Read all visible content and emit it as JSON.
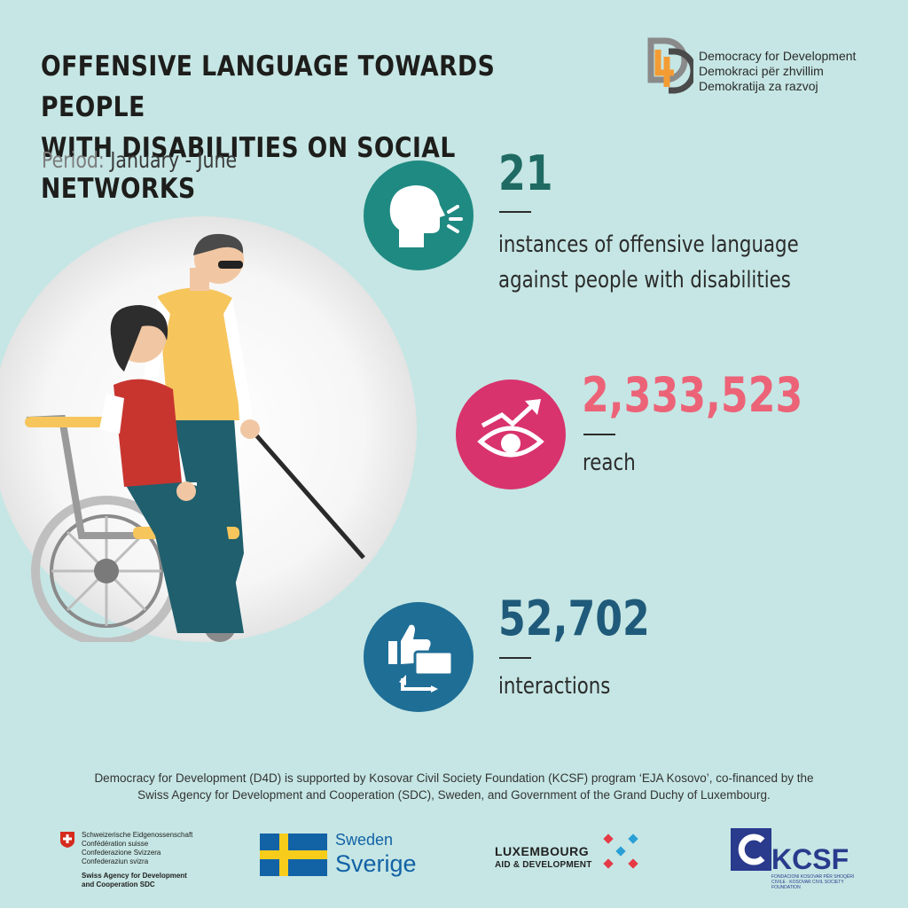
{
  "header": {
    "title_line1": "OFFENSIVE LANGUAGE TOWARDS PEOPLE",
    "title_line2": "WITH DISABILITIES ON SOCIAL NETWORKS",
    "period_label": "Period:",
    "period_value": " January - June"
  },
  "org": {
    "name_en": "Democracy for Development",
    "name_sq": "Demokraci për zhvillim",
    "name_sr": "Demokratija za razvoj"
  },
  "stats": [
    {
      "value": "21",
      "line1": "instances of offensive language",
      "line2": "against people with disabilities",
      "color": "#1f6a63",
      "icon": "speaking-head-icon"
    },
    {
      "value": "2,333,523",
      "line1": "reach",
      "color": "#ec6378",
      "icon": "eye-trend-icon"
    },
    {
      "value": "52,702",
      "line1": "interactions",
      "color": "#1f5a7a",
      "icon": "thumbs-up-chat-icon"
    }
  ],
  "footnote": {
    "line1": "Democracy for Development (D4D) is supported by Kosovar Civil Society Foundation (KCSF) program ‘EJA Kosovo’, co-financed by the",
    "line2": "Swiss Agency for Development and Cooperation (SDC), Sweden, and Government of the Grand Duchy of Luxembourg."
  },
  "sponsors": {
    "swiss_l1": "Schweizerische Eidgenossenschaft",
    "swiss_l2": "Confédération suisse",
    "swiss_l3": "Confederazione Svizzera",
    "swiss_l4": "Confederaziun svizra",
    "swiss_b1": "Swiss Agency for Development",
    "swiss_b2": "and Cooperation SDC",
    "sweden_l1": "Sweden",
    "sweden_l2": "Sverige",
    "lux_l1": "LUXEMBOURG",
    "lux_l2": "AID & DEVELOPMENT",
    "kcsf": "KCSF",
    "kcsf_sub": "FONDACIONI KOSOVAR PËR SHOQËRI CIVILE · KOSOVAR CIVIL SOCIETY FOUNDATION"
  },
  "colors": {
    "background": "#c5e6e4",
    "teal": "#1f8a82",
    "pink": "#d8336d",
    "blue": "#1f6e96"
  }
}
